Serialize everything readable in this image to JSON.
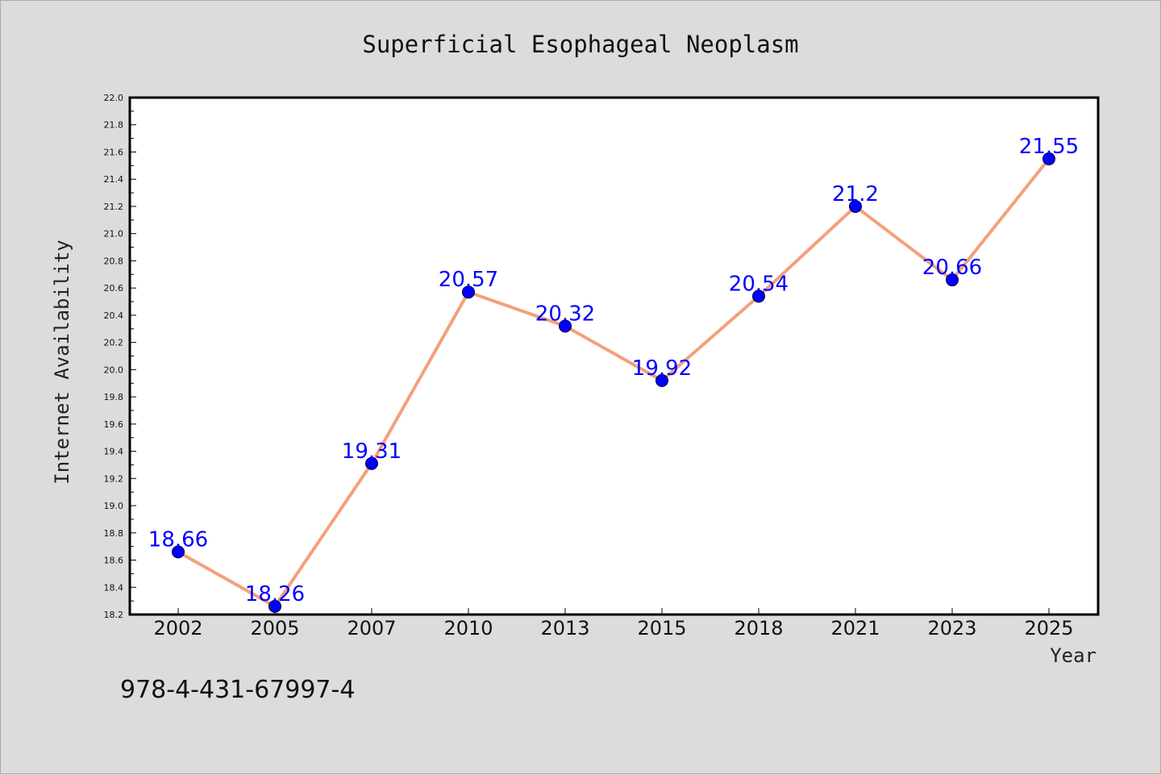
{
  "chart_data": {
    "type": "line",
    "title": "Superficial Esophageal Neoplasm",
    "xlabel": "Year",
    "ylabel": "Internet Availability",
    "categories": [
      "2002",
      "2005",
      "2007",
      "2010",
      "2013",
      "2015",
      "2018",
      "2021",
      "2023",
      "2025"
    ],
    "series": [
      {
        "values": [
          18.66,
          18.26,
          19.31,
          20.57,
          20.32,
          19.92,
          20.54,
          21.2,
          20.66,
          21.55
        ],
        "data_labels": [
          "18.66",
          "18.26",
          "19.31",
          "20.57",
          "20.32",
          "19.92",
          "20.54",
          "21.2",
          "20.66",
          "21.55"
        ],
        "line_color": "#f4a07a",
        "marker_color": "#0000ff"
      }
    ],
    "ylim": [
      18.2,
      22.0
    ],
    "yticks": [
      "18.2",
      "18.4",
      "18.6",
      "18.8",
      "19.0",
      "19.2",
      "19.4",
      "19.6",
      "19.8",
      "20.0",
      "20.2",
      "20.4",
      "20.6",
      "20.8",
      "21.0",
      "21.2",
      "21.4",
      "21.6",
      "21.8",
      "22.0"
    ],
    "grid": false,
    "legend": "none"
  },
  "footer": {
    "code": "978-4-431-67997-4"
  },
  "colors": {
    "background": "#dcdcdc",
    "plot_background": "#ffffff",
    "label_color": "#0000ff"
  }
}
